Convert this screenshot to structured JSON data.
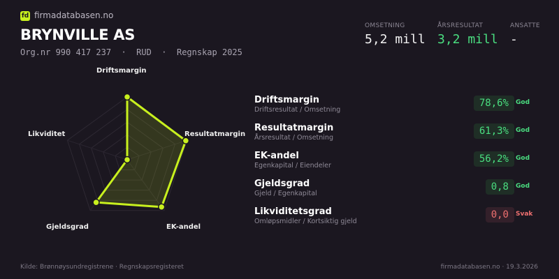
{
  "brand": {
    "logo_text": "fd",
    "name": "firmadatabasen.no"
  },
  "company": {
    "name": "BRYNVILLE AS",
    "meta": "Org.nr 990 417 237  ·  RUD  ·  Regnskap 2025"
  },
  "kpis": [
    {
      "label": "OMSETNING",
      "value": "5,2 mill",
      "color": "#f2f2f2"
    },
    {
      "label": "ÅRSRESULTAT",
      "value": "3,2 mill",
      "color": "#4ade80"
    },
    {
      "label": "ANSATTE",
      "value": "-",
      "color": "#f2f2f2"
    }
  ],
  "chart_data": {
    "type": "radar",
    "axes": [
      "Driftsmargin",
      "Resultatmargin",
      "EK-andel",
      "Gjeldsgrad",
      "Likviditet"
    ],
    "values": [
      1.0,
      0.98,
      0.93,
      0.84,
      0.0
    ],
    "range": [
      0,
      1
    ],
    "grid_rings": 5,
    "color": "#c8f01e"
  },
  "metrics": [
    {
      "name": "Driftsmargin",
      "desc": "Driftsresultat / Omsetning",
      "value": "78,6%",
      "status": "God",
      "good": true
    },
    {
      "name": "Resultatmargin",
      "desc": "Årsresultat / Omsetning",
      "value": "61,3%",
      "status": "God",
      "good": true
    },
    {
      "name": "EK-andel",
      "desc": "Egenkapital / Eiendeler",
      "value": "56,2%",
      "status": "God",
      "good": true
    },
    {
      "name": "Gjeldsgrad",
      "desc": "Gjeld / Egenkapital",
      "value": "0,8",
      "status": "God",
      "good": true
    },
    {
      "name": "Likviditetsgrad",
      "desc": "Omløpsmidler / Kortsiktig gjeld",
      "value": "0,0",
      "status": "Svak",
      "good": false
    }
  ],
  "footer": {
    "source": "Kilde: Brønnøysundregistrene · Regnskapsregisteret",
    "site": "firmadatabasen.no · 19.3.2026"
  },
  "colors": {
    "good": "#4ade80",
    "bad": "#f07070",
    "accent": "#c8f01e"
  }
}
